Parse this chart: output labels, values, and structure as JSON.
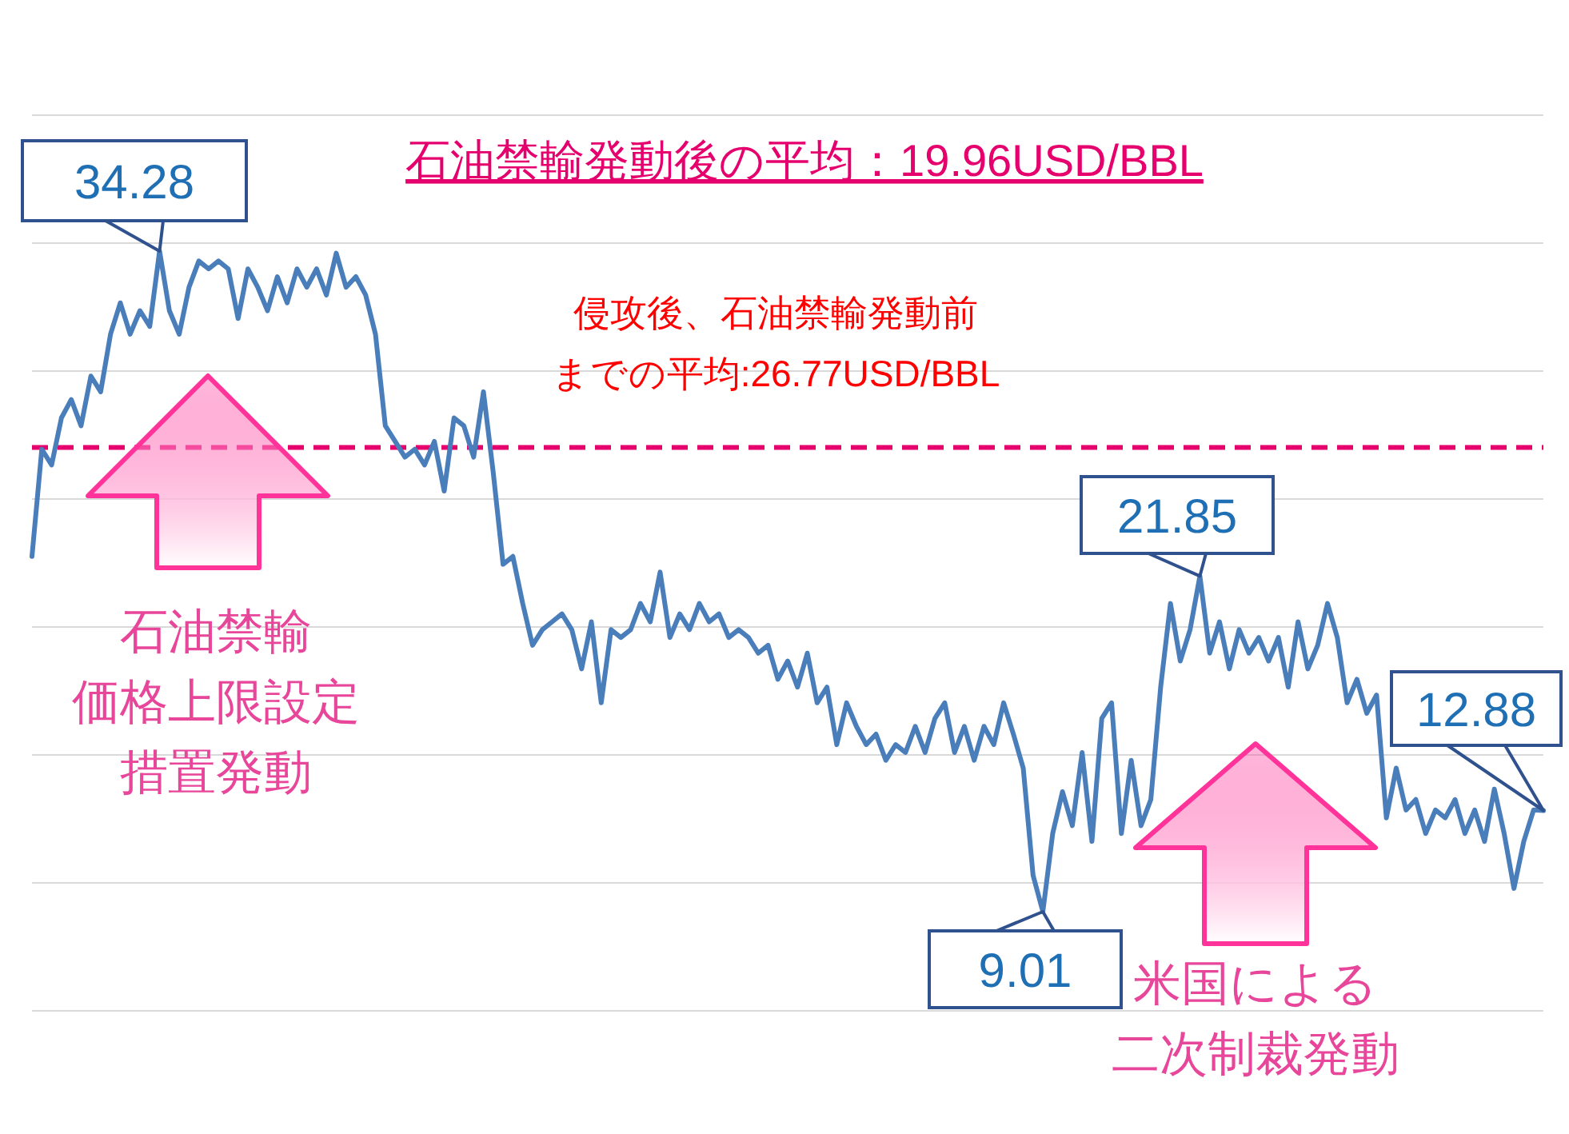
{
  "chart_data": {
    "type": "line",
    "title": "石油禁輸発動後の平均：19.96USD/BBL",
    "categories": [
      null,
      null,
      null,
      null,
      null,
      null,
      null,
      null,
      null,
      null,
      null,
      null,
      null,
      null,
      null,
      null,
      null,
      null,
      null,
      null,
      null,
      null,
      null,
      null,
      null,
      null,
      null,
      null,
      null,
      null,
      null,
      null,
      null,
      null,
      null,
      null,
      null,
      null,
      null,
      null,
      null,
      null,
      null,
      null,
      null,
      null,
      null,
      null,
      null,
      null,
      null,
      null,
      null,
      null,
      null,
      null,
      null,
      null,
      null,
      null,
      null,
      null,
      null,
      null,
      null,
      null,
      null,
      null,
      null,
      null,
      null,
      null,
      null,
      null,
      null,
      null,
      null,
      null,
      null,
      null,
      null,
      null,
      null,
      null,
      null,
      null,
      null,
      null,
      null,
      null,
      null,
      null,
      null,
      null,
      null,
      null,
      null,
      null,
      null,
      null,
      null,
      null,
      null,
      null,
      null,
      null,
      null,
      null,
      null,
      null,
      null,
      null,
      null,
      null,
      null,
      null,
      null,
      null,
      null,
      null,
      null,
      null,
      null,
      null,
      null,
      null,
      null,
      null,
      null,
      null,
      null,
      null,
      null,
      null,
      null,
      null,
      null,
      null,
      null,
      null,
      null,
      null,
      null,
      null,
      null,
      null,
      null,
      null,
      null,
      null,
      null,
      null,
      null,
      null,
      null
    ],
    "series": [
      {
        "color": "#4a7ebb",
        "values": [
          22.6,
          26.7,
          26.1,
          27.9,
          28.6,
          27.6,
          29.5,
          28.9,
          31.1,
          32.3,
          31.1,
          32.0,
          31.4,
          34.28,
          32.0,
          31.1,
          32.9,
          33.9,
          33.6,
          33.9,
          33.6,
          31.7,
          33.6,
          32.9,
          32.0,
          33.3,
          32.3,
          33.6,
          32.9,
          33.6,
          32.6,
          34.2,
          32.9,
          33.3,
          32.6,
          31.1,
          27.6,
          27.0,
          26.4,
          26.7,
          26.1,
          27.0,
          25.1,
          27.9,
          27.6,
          26.4,
          28.9,
          25.8,
          22.3,
          22.6,
          20.8,
          19.2,
          19.8,
          20.1,
          20.4,
          19.8,
          18.3,
          20.1,
          17.0,
          19.8,
          19.5,
          19.8,
          20.8,
          20.1,
          22.0,
          19.5,
          20.4,
          19.8,
          20.8,
          20.1,
          20.4,
          19.5,
          19.8,
          19.5,
          18.9,
          19.2,
          17.9,
          18.6,
          17.6,
          18.9,
          17.0,
          17.6,
          15.4,
          17.0,
          16.1,
          15.4,
          15.8,
          14.8,
          15.4,
          15.1,
          16.1,
          15.1,
          16.4,
          17.0,
          15.1,
          16.1,
          14.8,
          16.1,
          15.4,
          17.0,
          15.8,
          14.5,
          10.4,
          9.01,
          12.0,
          13.6,
          12.3,
          15.1,
          11.7,
          16.4,
          17.0,
          12.0,
          14.8,
          12.3,
          13.3,
          17.6,
          20.8,
          18.6,
          19.8,
          21.85,
          18.9,
          20.1,
          18.3,
          19.8,
          18.9,
          19.5,
          18.6,
          19.5,
          17.6,
          20.1,
          18.3,
          19.2,
          20.8,
          19.5,
          17.0,
          17.9,
          16.6,
          17.3,
          12.6,
          14.5,
          12.9,
          13.3,
          12.0,
          12.9,
          12.6,
          13.3,
          12.0,
          12.9,
          11.7,
          13.7,
          12.0,
          9.9,
          11.7,
          12.9,
          12.88
        ],
        "value_labels": [
          null,
          null,
          null,
          null,
          null,
          null,
          null,
          null,
          null,
          null,
          null,
          null,
          null,
          "34.28",
          null,
          null,
          null,
          null,
          null,
          null,
          null,
          null,
          null,
          null,
          null,
          null,
          null,
          null,
          null,
          null,
          null,
          null,
          null,
          null,
          null,
          null,
          null,
          null,
          null,
          null,
          null,
          null,
          null,
          null,
          null,
          null,
          null,
          null,
          null,
          null,
          null,
          null,
          null,
          null,
          null,
          null,
          null,
          null,
          null,
          null,
          null,
          null,
          null,
          null,
          null,
          null,
          null,
          null,
          null,
          null,
          null,
          null,
          null,
          null,
          null,
          null,
          null,
          null,
          null,
          null,
          null,
          null,
          null,
          null,
          null,
          null,
          null,
          null,
          null,
          null,
          null,
          null,
          null,
          null,
          null,
          null,
          null,
          null,
          null,
          null,
          null,
          null,
          null,
          "9.01",
          null,
          null,
          null,
          null,
          null,
          null,
          null,
          null,
          null,
          null,
          null,
          null,
          null,
          null,
          null,
          "21.85",
          null,
          null,
          null,
          null,
          null,
          null,
          null,
          null,
          null,
          null,
          null,
          null,
          null,
          null,
          null,
          null,
          null,
          null,
          null,
          null,
          null,
          null,
          null,
          null,
          null,
          null,
          null,
          null,
          null,
          null,
          null,
          null,
          null,
          null,
          "12.88"
        ]
      }
    ],
    "grid": "y",
    "line_style": "solid",
    "ref_lines": [
      {
        "axis": "y",
        "value": 26.77,
        "label": "侵攻後、石油禁輸発動前までの平均:26.77USD/BBL",
        "color": "#e6006e",
        "line_style": "dashed"
      }
    ],
    "annotations": [
      "石油禁輸価格上限設定措置発動",
      "米国による二次制裁発動"
    ]
  }
}
